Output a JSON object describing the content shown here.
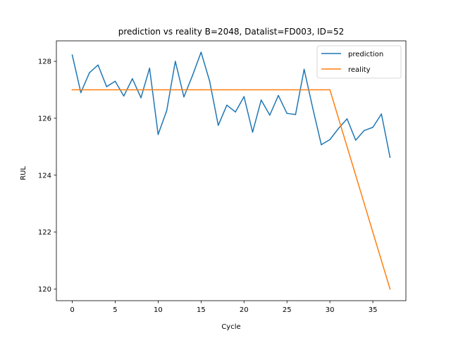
{
  "chart_data": {
    "type": "line",
    "title": "prediction vs reality B=2048, Datalist=FD003, ID=52",
    "xlabel": "Cycle",
    "ylabel": "RUL",
    "xlim": [
      -1.85,
      38.85
    ],
    "ylim": [
      119.59,
      128.72
    ],
    "xticks": [
      0,
      5,
      10,
      15,
      20,
      25,
      30,
      35
    ],
    "yticks": [
      120,
      122,
      124,
      126,
      128
    ],
    "legend_position": "top-right",
    "grid": false,
    "series": [
      {
        "name": "prediction",
        "color": "#1f77b4",
        "x": [
          0,
          1,
          2,
          3,
          4,
          5,
          6,
          7,
          8,
          9,
          10,
          11,
          12,
          13,
          14,
          15,
          16,
          17,
          18,
          19,
          20,
          21,
          22,
          23,
          24,
          25,
          26,
          27,
          28,
          29,
          30,
          31,
          32,
          33,
          34,
          35,
          36,
          37
        ],
        "values": [
          128.22,
          126.9,
          127.6,
          127.87,
          127.11,
          127.3,
          126.78,
          127.39,
          126.72,
          127.76,
          125.43,
          126.27,
          128.0,
          126.75,
          127.5,
          128.32,
          127.3,
          125.75,
          126.46,
          126.22,
          126.76,
          125.51,
          126.64,
          126.11,
          126.8,
          126.17,
          126.13,
          127.72,
          126.36,
          125.07,
          125.25,
          125.64,
          125.98,
          125.23,
          125.57,
          125.68,
          126.15,
          124.63
        ]
      },
      {
        "name": "reality",
        "color": "#ff7f0e",
        "x": [
          0,
          1,
          2,
          3,
          4,
          5,
          6,
          7,
          8,
          9,
          10,
          11,
          12,
          13,
          14,
          15,
          16,
          17,
          18,
          19,
          20,
          21,
          22,
          23,
          24,
          25,
          26,
          27,
          28,
          29,
          30,
          31,
          32,
          33,
          34,
          35,
          36,
          37
        ],
        "values": [
          127,
          127,
          127,
          127,
          127,
          127,
          127,
          127,
          127,
          127,
          127,
          127,
          127,
          127,
          127,
          127,
          127,
          127,
          127,
          127,
          127,
          127,
          127,
          127,
          127,
          127,
          127,
          127,
          127,
          127,
          127,
          126,
          125,
          124,
          123,
          122,
          121,
          120
        ]
      }
    ]
  }
}
